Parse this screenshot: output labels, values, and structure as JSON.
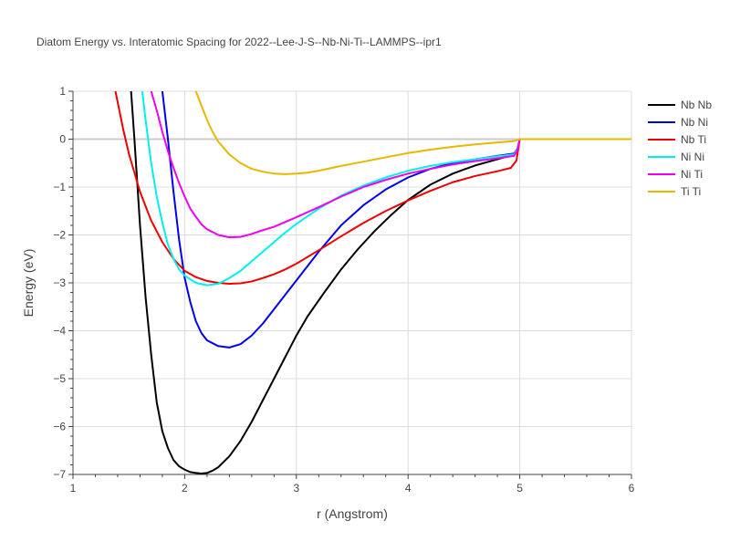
{
  "chart_data": {
    "type": "line",
    "title": "Diatom Energy vs. Interatomic Spacing for 2022--Lee-J-S--Nb-Ni-Ti--LAMMPS--ipr1",
    "xlabel": "r (Angstrom)",
    "ylabel": "Energy (eV)",
    "xlim": [
      1,
      6
    ],
    "ylim": [
      -7,
      1
    ],
    "xticks": [
      1,
      2,
      3,
      4,
      5,
      6
    ],
    "xtick_labels": [
      "1",
      "2",
      "3",
      "4",
      "5",
      "6"
    ],
    "yticks": [
      1,
      0,
      -1,
      -2,
      -3,
      -4,
      -5,
      -6,
      -7
    ],
    "ytick_labels": [
      "1",
      "0",
      "−1",
      "−2",
      "−3",
      "−4",
      "−5",
      "−6",
      "−7"
    ],
    "grid": true,
    "legend_position": "top-right",
    "series": [
      {
        "name": "Nb Nb",
        "color": "#000000",
        "x": [
          1.52,
          1.55,
          1.6,
          1.65,
          1.7,
          1.75,
          1.8,
          1.85,
          1.9,
          1.95,
          2.0,
          2.05,
          2.1,
          2.15,
          2.2,
          2.25,
          2.3,
          2.4,
          2.5,
          2.6,
          2.7,
          2.8,
          2.9,
          3.0,
          3.1,
          3.25,
          3.4,
          3.55,
          3.7,
          3.85,
          4.0,
          4.2,
          4.4,
          4.6,
          4.8,
          4.95,
          4.98,
          5.0,
          5.1,
          6.0
        ],
        "y": [
          1.0,
          0.0,
          -1.8,
          -3.3,
          -4.5,
          -5.5,
          -6.1,
          -6.45,
          -6.7,
          -6.83,
          -6.9,
          -6.95,
          -6.97,
          -6.98,
          -6.97,
          -6.92,
          -6.85,
          -6.62,
          -6.3,
          -5.9,
          -5.45,
          -5.0,
          -4.55,
          -4.1,
          -3.7,
          -3.2,
          -2.72,
          -2.3,
          -1.92,
          -1.58,
          -1.27,
          -0.95,
          -0.72,
          -0.55,
          -0.42,
          -0.32,
          -0.2,
          0.0,
          0.0,
          0.0
        ]
      },
      {
        "name": "Nb Ni",
        "color": "#0000ee",
        "x": [
          1.8,
          1.85,
          1.9,
          1.95,
          2.0,
          2.05,
          2.1,
          2.15,
          2.2,
          2.3,
          2.4,
          2.5,
          2.6,
          2.7,
          2.8,
          2.9,
          3.0,
          3.2,
          3.4,
          3.6,
          3.8,
          4.0,
          4.2,
          4.4,
          4.6,
          4.8,
          4.95,
          4.98,
          5.0,
          5.1,
          6.0
        ],
        "y": [
          1.0,
          0.0,
          -1.1,
          -2.1,
          -2.9,
          -3.4,
          -3.8,
          -4.05,
          -4.2,
          -4.32,
          -4.35,
          -4.28,
          -4.1,
          -3.85,
          -3.55,
          -3.25,
          -2.95,
          -2.35,
          -1.8,
          -1.38,
          -1.05,
          -0.8,
          -0.62,
          -0.5,
          -0.42,
          -0.35,
          -0.3,
          -0.2,
          0.0,
          0.0,
          0.0
        ]
      },
      {
        "name": "Nb Ti",
        "color": "#ee0000",
        "x": [
          1.38,
          1.45,
          1.5,
          1.55,
          1.6,
          1.7,
          1.8,
          1.9,
          2.0,
          2.1,
          2.2,
          2.3,
          2.4,
          2.5,
          2.6,
          2.7,
          2.8,
          2.9,
          3.0,
          3.2,
          3.4,
          3.6,
          3.8,
          4.0,
          4.2,
          4.4,
          4.6,
          4.8,
          4.92,
          4.97,
          5.0,
          5.1,
          6.0
        ],
        "y": [
          1.0,
          0.2,
          -0.3,
          -0.7,
          -1.1,
          -1.7,
          -2.15,
          -2.5,
          -2.75,
          -2.88,
          -2.96,
          -3.0,
          -3.02,
          -3.01,
          -2.97,
          -2.9,
          -2.82,
          -2.72,
          -2.6,
          -2.32,
          -2.03,
          -1.75,
          -1.5,
          -1.28,
          -1.08,
          -0.9,
          -0.77,
          -0.67,
          -0.6,
          -0.45,
          0.0,
          0.0,
          0.0
        ]
      },
      {
        "name": "Ni Ni",
        "color": "#00f0f0",
        "x": [
          1.62,
          1.65,
          1.7,
          1.75,
          1.8,
          1.85,
          1.9,
          1.95,
          2.0,
          2.1,
          2.2,
          2.3,
          2.4,
          2.5,
          2.6,
          2.7,
          2.8,
          2.9,
          3.0,
          3.2,
          3.4,
          3.6,
          3.8,
          4.0,
          4.2,
          4.4,
          4.6,
          4.8,
          4.95,
          4.98,
          5.0,
          5.1,
          6.0
        ],
        "y": [
          1.0,
          0.4,
          -0.5,
          -1.2,
          -1.75,
          -2.2,
          -2.5,
          -2.72,
          -2.85,
          -3.0,
          -3.05,
          -3.02,
          -2.9,
          -2.75,
          -2.55,
          -2.35,
          -2.15,
          -1.95,
          -1.77,
          -1.45,
          -1.18,
          -0.97,
          -0.8,
          -0.66,
          -0.56,
          -0.48,
          -0.42,
          -0.36,
          -0.32,
          -0.2,
          0.0,
          0.0,
          0.0
        ]
      },
      {
        "name": "Ni Ti",
        "color": "#ee00ee",
        "x": [
          1.7,
          1.75,
          1.8,
          1.85,
          1.9,
          1.95,
          2.0,
          2.05,
          2.1,
          2.15,
          2.2,
          2.3,
          2.4,
          2.5,
          2.6,
          2.7,
          2.8,
          2.9,
          3.0,
          3.2,
          3.4,
          3.6,
          3.8,
          4.0,
          4.2,
          4.4,
          4.6,
          4.8,
          4.95,
          4.98,
          5.0,
          5.1,
          6.0
        ],
        "y": [
          1.0,
          0.6,
          0.15,
          -0.25,
          -0.6,
          -0.92,
          -1.2,
          -1.45,
          -1.62,
          -1.78,
          -1.88,
          -2.0,
          -2.05,
          -2.04,
          -1.98,
          -1.9,
          -1.83,
          -1.73,
          -1.63,
          -1.42,
          -1.2,
          -1.0,
          -0.85,
          -0.72,
          -0.62,
          -0.53,
          -0.46,
          -0.4,
          -0.35,
          -0.22,
          0.0,
          0.0,
          0.0
        ]
      },
      {
        "name": "Ti Ti",
        "color": "#e6b800",
        "x": [
          2.1,
          2.15,
          2.2,
          2.25,
          2.3,
          2.4,
          2.5,
          2.6,
          2.7,
          2.8,
          2.9,
          3.0,
          3.1,
          3.2,
          3.4,
          3.6,
          3.8,
          4.0,
          4.2,
          4.4,
          4.6,
          4.8,
          4.95,
          4.98,
          5.0,
          5.1,
          6.0
        ],
        "y": [
          1.0,
          0.7,
          0.4,
          0.15,
          -0.05,
          -0.32,
          -0.5,
          -0.62,
          -0.68,
          -0.72,
          -0.73,
          -0.72,
          -0.7,
          -0.66,
          -0.56,
          -0.47,
          -0.38,
          -0.29,
          -0.22,
          -0.16,
          -0.11,
          -0.07,
          -0.04,
          -0.02,
          0.0,
          0.0,
          0.0
        ]
      }
    ]
  }
}
